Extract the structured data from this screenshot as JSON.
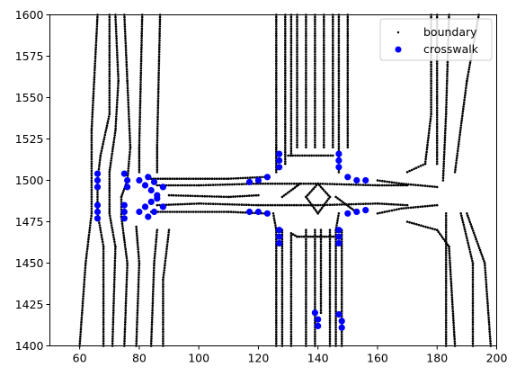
{
  "chart_data": {
    "type": "scatter",
    "xlim": [
      50,
      200
    ],
    "ylim": [
      1400,
      1600
    ],
    "x_ticks": [
      "60",
      "80",
      "100",
      "120",
      "140",
      "160",
      "180",
      "200"
    ],
    "y_ticks": [
      "1400",
      "1425",
      "1450",
      "1475",
      "1500",
      "1525",
      "1550",
      "1575",
      "1600"
    ],
    "grid": false,
    "legend_placement": "top-right",
    "series": [
      {
        "name": "boundary",
        "color": "#000000",
        "marker": "point",
        "polylines": [
          [
            [
              68,
              1400
            ],
            [
              68,
              1460
            ],
            [
              66,
              1480
            ],
            [
              66,
              1500
            ],
            [
              67,
              1515
            ],
            [
              70,
              1540
            ],
            [
              70,
              1600
            ]
          ],
          [
            [
              71,
              1400
            ],
            [
              72,
              1460
            ],
            [
              70,
              1480
            ],
            [
              70,
              1505
            ],
            [
              72,
              1530
            ],
            [
              73,
              1560
            ],
            [
              72,
              1600
            ]
          ],
          [
            [
              75,
              1400
            ],
            [
              76,
              1450
            ],
            [
              74,
              1478
            ],
            [
              74,
              1490
            ],
            [
              76,
              1500
            ],
            [
              77,
              1520
            ],
            [
              76,
              1560
            ],
            [
              75,
              1600
            ]
          ],
          [
            [
              79,
              1400
            ],
            [
              80,
              1450
            ],
            [
              79,
              1472
            ]
          ],
          [
            [
              80,
              1505
            ],
            [
              80,
              1520
            ],
            [
              81,
              1600
            ]
          ],
          [
            [
              84,
              1400
            ],
            [
              85,
              1450
            ],
            [
              86,
              1470
            ]
          ],
          [
            [
              86,
              1505
            ],
            [
              86,
              1520
            ],
            [
              87,
              1600
            ]
          ],
          [
            [
              88,
              1400
            ],
            [
              88,
              1440
            ],
            [
              90,
              1470
            ]
          ],
          [
            [
              60,
              1400
            ],
            [
              62,
              1450
            ],
            [
              64,
              1480
            ],
            [
              64,
              1500
            ],
            [
              64,
              1530
            ],
            [
              66,
              1600
            ]
          ],
          [
            [
              86,
              1485
            ],
            [
              100,
              1486
            ],
            [
              120,
              1485
            ],
            [
              140,
              1485
            ],
            [
              160,
              1486
            ],
            [
              170,
              1485
            ]
          ],
          [
            [
              86,
              1497
            ],
            [
              100,
              1497
            ],
            [
              120,
              1498
            ],
            [
              140,
              1498
            ],
            [
              160,
              1497
            ],
            [
              170,
              1497
            ]
          ],
          [
            [
              84,
              1481
            ],
            [
              110,
              1481
            ],
            [
              122,
              1480
            ]
          ],
          [
            [
              84,
              1501
            ],
            [
              110,
              1501
            ],
            [
              122,
              1502
            ]
          ],
          [
            [
              90,
              1491
            ],
            [
              110,
              1490
            ],
            [
              120,
              1491
            ]
          ],
          [
            [
              126,
              1400
            ],
            [
              126,
              1470
            ],
            [
              125,
              1480
            ]
          ],
          [
            [
              128,
              1400
            ],
            [
              128,
              1470
            ]
          ],
          [
            [
              131,
              1400
            ],
            [
              131,
              1468
            ],
            [
              133,
              1466
            ]
          ],
          [
            [
              126,
              1505
            ],
            [
              126,
              1520
            ],
            [
              126,
              1600
            ]
          ],
          [
            [
              129,
              1510
            ],
            [
              129,
              1600
            ]
          ],
          [
            [
              131,
              1515
            ],
            [
              131,
              1600
            ]
          ],
          [
            [
              133,
              1520
            ],
            [
              133,
              1600
            ]
          ],
          [
            [
              136,
              1400
            ],
            [
              136,
              1470
            ]
          ],
          [
            [
              139,
              1400
            ],
            [
              139,
              1470
            ]
          ],
          [
            [
              141,
              1420
            ],
            [
              141,
              1470
            ]
          ],
          [
            [
              144,
              1400
            ],
            [
              144,
              1470
            ]
          ],
          [
            [
              146,
              1400
            ],
            [
              146,
              1470
            ],
            [
              147,
              1480
            ]
          ],
          [
            [
              148,
              1400
            ],
            [
              148,
              1470
            ]
          ],
          [
            [
              136,
              1520
            ],
            [
              136,
              1600
            ]
          ],
          [
            [
              139,
              1520
            ],
            [
              139,
              1600
            ]
          ],
          [
            [
              142,
              1520
            ],
            [
              142,
              1600
            ]
          ],
          [
            [
              145,
              1520
            ],
            [
              145,
              1600
            ]
          ],
          [
            [
              147,
              1505
            ],
            [
              147,
              1600
            ]
          ],
          [
            [
              150,
              1520
            ],
            [
              150,
              1600
            ]
          ],
          [
            [
              133,
              1466
            ],
            [
              146,
              1466
            ]
          ],
          [
            [
              130,
              1515
            ],
            [
              145,
              1515
            ]
          ],
          [
            [
              140,
              1480
            ],
            [
              144,
              1490
            ],
            [
              140,
              1498
            ],
            [
              136,
              1490
            ],
            [
              140,
              1480
            ]
          ],
          [
            [
              128,
              1490
            ],
            [
              134,
              1498
            ]
          ],
          [
            [
              146,
              1490
            ],
            [
              152,
              1482
            ]
          ],
          [
            [
              160,
              1480
            ],
            [
              168,
              1483
            ],
            [
              180,
              1485
            ]
          ],
          [
            [
              160,
              1500
            ],
            [
              168,
              1498
            ],
            [
              180,
              1496
            ]
          ],
          [
            [
              170,
              1475
            ],
            [
              180,
              1470
            ],
            [
              184,
              1460
            ],
            [
              186,
              1400
            ]
          ],
          [
            [
              170,
              1505
            ],
            [
              176,
              1510
            ],
            [
              178,
              1540
            ],
            [
              178,
              1600
            ]
          ],
          [
            [
              180,
              1510
            ],
            [
              180,
              1600
            ]
          ],
          [
            [
              182,
              1500
            ],
            [
              183,
              1540
            ],
            [
              184,
              1600
            ]
          ],
          [
            [
              183,
              1400
            ],
            [
              183,
              1480
            ]
          ],
          [
            [
              186,
              1505
            ],
            [
              190,
              1560
            ],
            [
              194,
              1600
            ]
          ],
          [
            [
              192,
              1400
            ],
            [
              192,
              1450
            ],
            [
              188,
              1480
            ]
          ],
          [
            [
              198,
              1400
            ],
            [
              196,
              1450
            ],
            [
              190,
              1480
            ]
          ]
        ]
      },
      {
        "name": "crosswalk",
        "color": "#0000ff",
        "marker": "circle",
        "points": [
          [
            66,
            1504
          ],
          [
            66,
            1500
          ],
          [
            66,
            1496
          ],
          [
            66,
            1485
          ],
          [
            66,
            1481
          ],
          [
            66,
            1477
          ],
          [
            75,
            1504
          ],
          [
            76,
            1500
          ],
          [
            76,
            1496
          ],
          [
            75,
            1485
          ],
          [
            75,
            1481
          ],
          [
            75,
            1477
          ],
          [
            80,
            1500
          ],
          [
            82,
            1497
          ],
          [
            84,
            1494
          ],
          [
            86,
            1491
          ],
          [
            80,
            1481
          ],
          [
            82,
            1484
          ],
          [
            84,
            1487
          ],
          [
            86,
            1489
          ],
          [
            83,
            1502
          ],
          [
            85,
            1499
          ],
          [
            88,
            1496
          ],
          [
            83,
            1478
          ],
          [
            85,
            1481
          ],
          [
            88,
            1484
          ],
          [
            117,
            1499
          ],
          [
            120,
            1500
          ],
          [
            123,
            1502
          ],
          [
            117,
            1481
          ],
          [
            120,
            1481
          ],
          [
            123,
            1480
          ],
          [
            127,
            1516
          ],
          [
            127,
            1512
          ],
          [
            127,
            1508
          ],
          [
            127,
            1470
          ],
          [
            127,
            1466
          ],
          [
            127,
            1462
          ],
          [
            147,
            1516
          ],
          [
            147,
            1512
          ],
          [
            147,
            1508
          ],
          [
            147,
            1470
          ],
          [
            147,
            1466
          ],
          [
            147,
            1462
          ],
          [
            150,
            1502
          ],
          [
            153,
            1500
          ],
          [
            156,
            1500
          ],
          [
            150,
            1480
          ],
          [
            153,
            1481
          ],
          [
            156,
            1482
          ],
          [
            139,
            1420
          ],
          [
            140,
            1416
          ],
          [
            140,
            1412
          ],
          [
            147,
            1419
          ],
          [
            148,
            1415
          ],
          [
            148,
            1411
          ]
        ]
      }
    ]
  }
}
